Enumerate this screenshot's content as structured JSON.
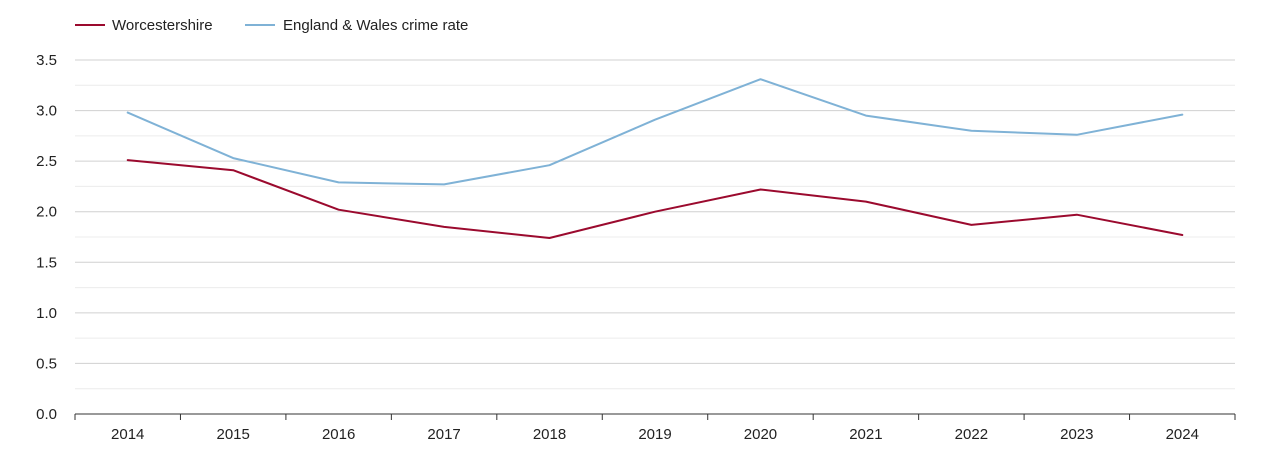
{
  "chart_data": {
    "type": "line",
    "title": "",
    "xlabel": "",
    "ylabel": "",
    "x": [
      "2014",
      "2015",
      "2016",
      "2017",
      "2018",
      "2019",
      "2020",
      "2021",
      "2022",
      "2023",
      "2024"
    ],
    "ylim": [
      0,
      3.5
    ],
    "yticks": [
      "0.0",
      "0.5",
      "1.0",
      "1.5",
      "2.0",
      "2.5",
      "3.0",
      "3.5"
    ],
    "grid": true,
    "legend_position": "top-left",
    "series": [
      {
        "name": "Worcestershire",
        "color": "#9b0a2e",
        "values": [
          2.51,
          2.41,
          2.02,
          1.85,
          1.74,
          2.0,
          2.22,
          2.1,
          1.87,
          1.97,
          1.77
        ]
      },
      {
        "name": "England & Wales crime rate",
        "color": "#7fb2d6",
        "values": [
          2.98,
          2.53,
          2.29,
          2.27,
          2.46,
          2.91,
          3.31,
          2.95,
          2.8,
          2.76,
          2.96
        ]
      }
    ]
  }
}
